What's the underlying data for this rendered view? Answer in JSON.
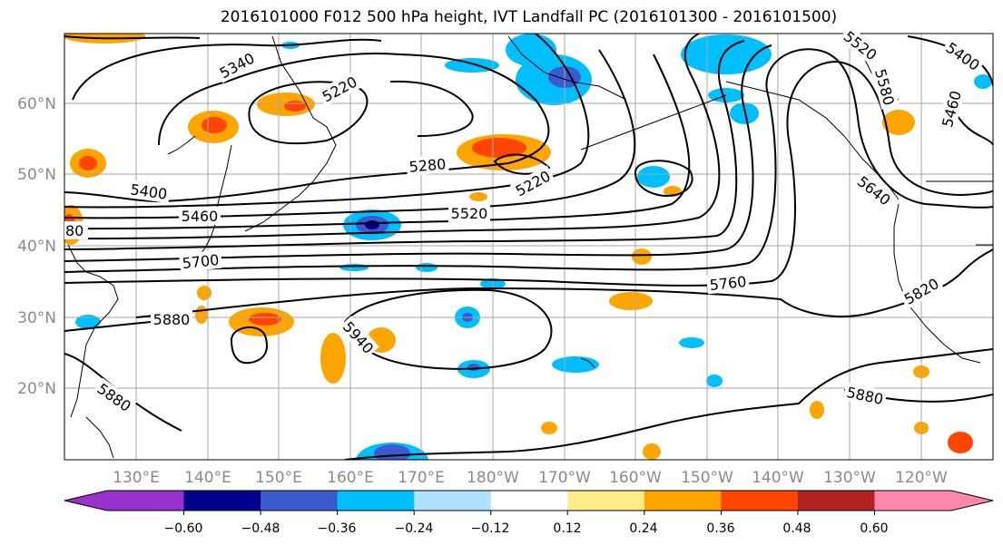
{
  "title": "2016101000 F012 500 hPa height, IVT Landfall PC (2016101300 - 2016101500)",
  "lon_labels": [
    "130°E",
    "140°E",
    "150°E",
    "160°E",
    "170°E",
    "180°W",
    "170°W",
    "160°W",
    "150°W",
    "140°W",
    "130°W",
    "120°W"
  ],
  "lat_labels": [
    "60°N",
    "50°N",
    "40°N",
    "30°N",
    "20°N"
  ],
  "contour_labels": [
    "5340",
    "5220",
    "5280",
    "5220",
    "5400",
    "5460",
    "5520",
    "5700",
    "5760",
    "5880",
    "5940",
    "5880",
    "5880",
    "5820",
    "5640",
    "5520",
    "5580",
    "5460",
    "5400",
    "80"
  ],
  "colorbar": {
    "ticks": [
      "−0.60",
      "−0.48",
      "−0.36",
      "−0.24",
      "−0.12",
      "0.12",
      "0.24",
      "0.36",
      "0.48",
      "0.60"
    ],
    "colors": [
      "#9932cc",
      "#00008b",
      "#3a5acd",
      "#00bfff",
      "#aee2ff",
      "#ffffff",
      "#ffeb8a",
      "#ffa500",
      "#ff4500",
      "#b22222",
      "#ff88aa"
    ]
  },
  "chart_data": {
    "type": "heatmap",
    "variable": "500 hPa height contours with IVT landfall PC shading",
    "contour_levels": [
      5220,
      5280,
      5340,
      5400,
      5460,
      5520,
      5580,
      5640,
      5700,
      5760,
      5820,
      5880,
      5940
    ],
    "color_levels": [
      -0.6,
      -0.48,
      -0.36,
      -0.24,
      -0.12,
      0.12,
      0.24,
      0.36,
      0.48,
      0.6
    ]
  }
}
